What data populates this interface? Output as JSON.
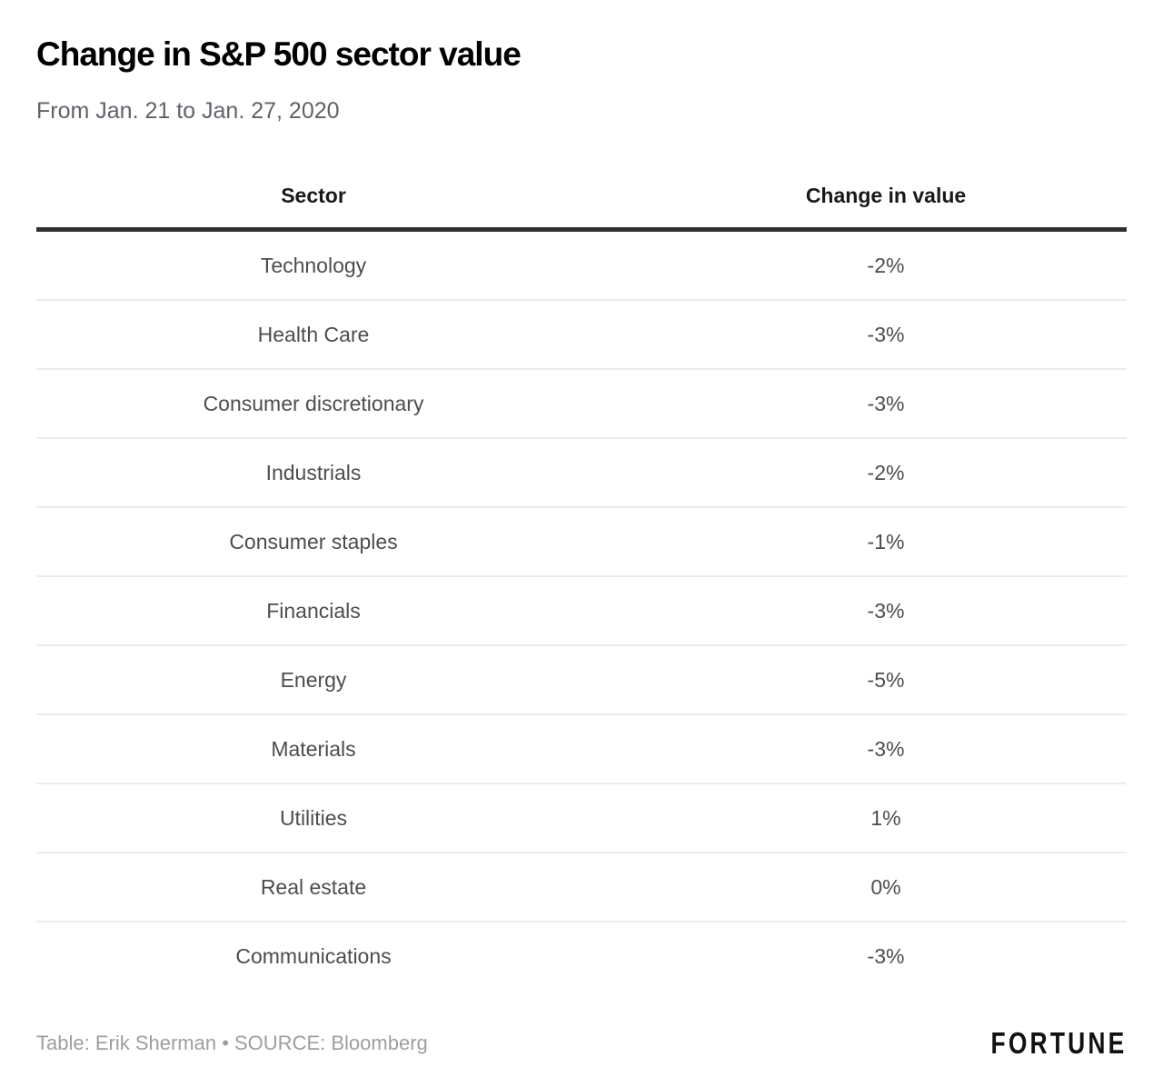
{
  "header": {
    "title": "Change in S&P 500 sector value",
    "subtitle": "From Jan. 21 to Jan. 27, 2020"
  },
  "table": {
    "columns": {
      "sector": "Sector",
      "value": "Change in value"
    },
    "rows": [
      {
        "sector": "Technology",
        "value": "-2%"
      },
      {
        "sector": "Health Care",
        "value": "-3%"
      },
      {
        "sector": "Consumer discretionary",
        "value": "-3%"
      },
      {
        "sector": "Industrials",
        "value": "-2%"
      },
      {
        "sector": "Consumer staples",
        "value": "-1%"
      },
      {
        "sector": "Financials",
        "value": "-3%"
      },
      {
        "sector": "Energy",
        "value": "-5%"
      },
      {
        "sector": "Materials",
        "value": "-3%"
      },
      {
        "sector": "Utilities",
        "value": "1%"
      },
      {
        "sector": "Real estate",
        "value": "0%"
      },
      {
        "sector": "Communications",
        "value": "-3%"
      }
    ]
  },
  "footer": {
    "attribution": "Table: Erik Sherman • SOURCE: Bloomberg",
    "brand": "FORTUNE"
  },
  "colors": {
    "background": "#ffffff",
    "title": "#000000",
    "subtitle": "#5f6368",
    "header_text": "#191919",
    "header_rule": "#303030",
    "row_text": "#4d4d4d",
    "row_divider": "#ececec",
    "attribution_text": "#9e9e9e",
    "brand_text": "#111111"
  },
  "chart_data": {
    "type": "table",
    "title": "Change in S&P 500 sector value",
    "subtitle": "From Jan. 21 to Jan. 27, 2020",
    "columns": [
      "Sector",
      "Change in value"
    ],
    "categories": [
      "Technology",
      "Health Care",
      "Consumer discretionary",
      "Industrials",
      "Consumer staples",
      "Financials",
      "Energy",
      "Materials",
      "Utilities",
      "Real estate",
      "Communications"
    ],
    "values": [
      -2,
      -3,
      -3,
      -2,
      -1,
      -3,
      -5,
      -3,
      1,
      0,
      -3
    ],
    "unit": "%",
    "credit": "Table: Erik Sherman",
    "source": "SOURCE: Bloomberg",
    "legend_position": "none",
    "grid": "horizontal-row-dividers"
  }
}
